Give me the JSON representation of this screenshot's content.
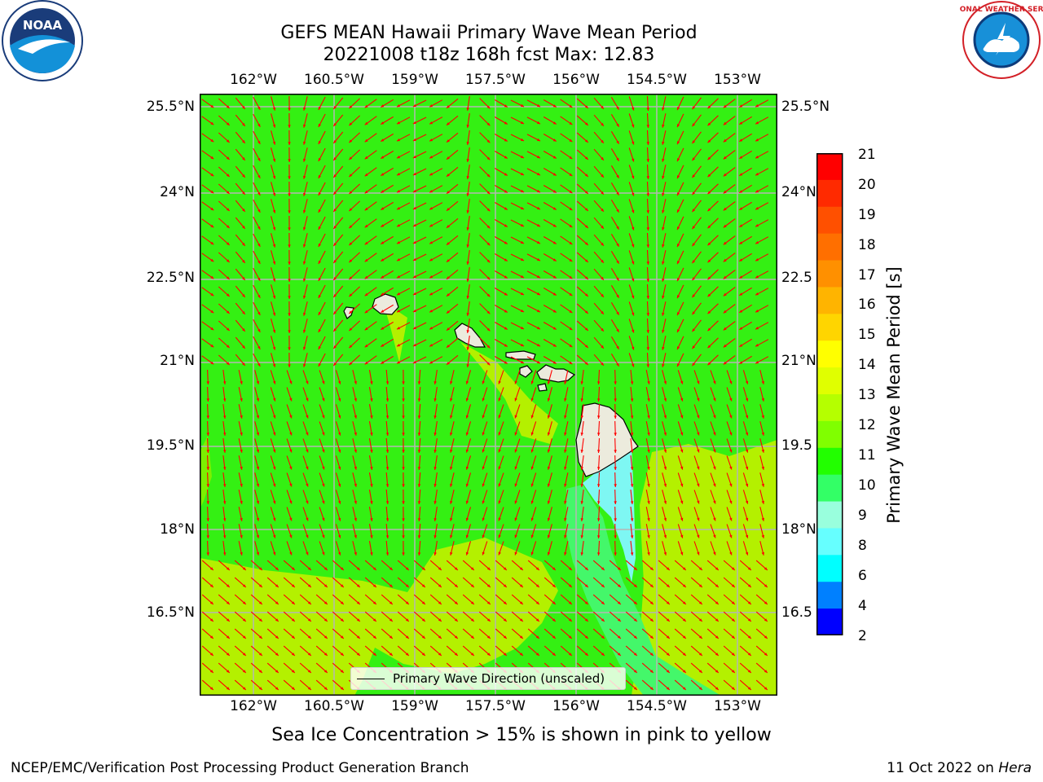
{
  "title": {
    "line1": "GEFS MEAN Hawaii Primary Wave Mean Period",
    "line2": "20221008 t18z 168h fcst   Max: 12.83"
  },
  "logos": {
    "left": {
      "text": "NOAA",
      "icon": "noaa-logo"
    },
    "right": {
      "text": "NATIONAL WEATHER SERVICE",
      "icon": "nws-logo"
    }
  },
  "axes": {
    "lon_labels": [
      "162°W",
      "160.5°W",
      "159°W",
      "157.5°W",
      "156°W",
      "154.5°W",
      "153°W"
    ],
    "lat_labels_left": [
      "25.5°N",
      "24°N",
      "22.5°N",
      "21°N",
      "19.5°N",
      "18°N",
      "16.5°N"
    ],
    "lat_labels_right": [
      "25.5°N",
      "24°N",
      "22.5",
      "21°N",
      "19.5",
      "18°N",
      "16.5"
    ]
  },
  "colorbar": {
    "label": "Primary Wave Mean Period [s]",
    "ticks": [
      "21",
      "20",
      "19",
      "18",
      "17",
      "16",
      "15",
      "14",
      "13",
      "12",
      "11",
      "10",
      "9",
      "8",
      "6",
      "4",
      "2"
    ],
    "colors": [
      "#ff0000",
      "#ff2a00",
      "#ff5000",
      "#ff6f00",
      "#ff9000",
      "#ffb400",
      "#ffd500",
      "#ffff00",
      "#e0ff00",
      "#b5ff00",
      "#80ff00",
      "#22ff00",
      "#33ff66",
      "#99ffdd",
      "#66ffff",
      "#00ffff",
      "#0080ff",
      "#0000ff"
    ]
  },
  "legend": {
    "text": "Primary Wave Direction (unscaled)"
  },
  "caption": "Sea Ice Concentration > 15% is shown in pink to yellow",
  "footer": {
    "left": "NCEP/EMC/Verification Post Processing Product Generation Branch",
    "right_date": "11 Oct 2022 on ",
    "right_machine": "Hera"
  },
  "map_colors": {
    "green": "#34f013",
    "yellow_green": "#b4f000",
    "light_green": "#7cf000",
    "teal": "#44f76a",
    "cyan": "#7ef7f3",
    "land": "#ecebdd",
    "arrow": "#ff0000",
    "grid": "#b5b5b5"
  }
}
